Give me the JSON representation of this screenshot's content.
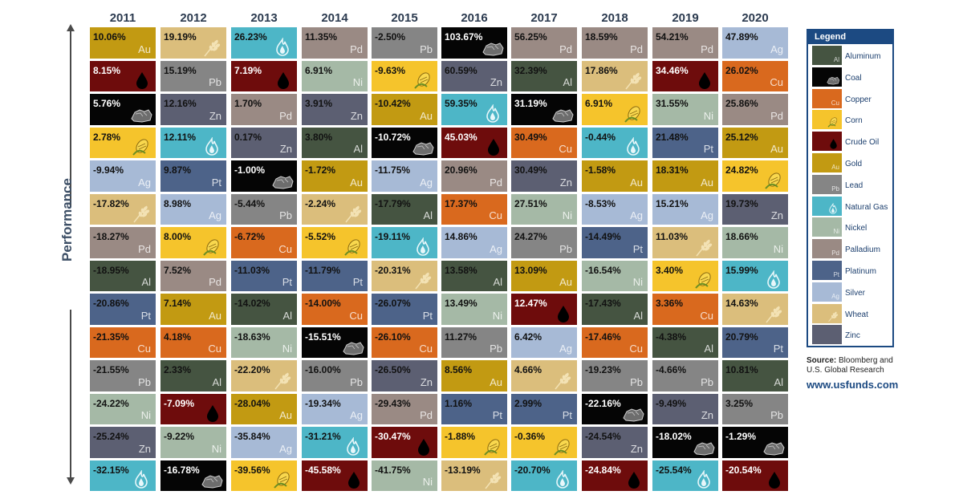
{
  "axis_label": "Performance",
  "legend": {
    "title": "Legend",
    "items": [
      {
        "symbol": "Al",
        "name": "Aluminum"
      },
      {
        "symbol": "",
        "name": "Coal"
      },
      {
        "symbol": "Cu",
        "name": "Copper"
      },
      {
        "symbol": "",
        "name": "Corn"
      },
      {
        "symbol": "",
        "name": "Crude Oil"
      },
      {
        "symbol": "Au",
        "name": "Gold"
      },
      {
        "symbol": "Pb",
        "name": "Lead"
      },
      {
        "symbol": "",
        "name": "Natural Gas"
      },
      {
        "symbol": "Ni",
        "name": "Nickel"
      },
      {
        "symbol": "Pd",
        "name": "Palladium"
      },
      {
        "symbol": "Pt",
        "name": "Platinum"
      },
      {
        "symbol": "Ag",
        "name": "Silver"
      },
      {
        "symbol": "",
        "name": "Wheat"
      },
      {
        "symbol": "",
        "name": "Zinc"
      }
    ]
  },
  "source_label": "Source:",
  "source_text": "Bloomberg and U.S. Global Research",
  "website": "www.usfunds.com",
  "colors": {
    "Al": "#455441",
    "Coal": "#050505",
    "Cu": "#d9691e",
    "Corn": "#f5c42c",
    "Oil": "#6e0c0c",
    "Au": "#c29a12",
    "Pb": "#858585",
    "Gas": "#4db6c7",
    "Ni": "#a5b9a6",
    "Pd": "#9a8a84",
    "Pt": "#4d6389",
    "Ag": "#a7bad6",
    "Wheat": "#dbbe7c",
    "Zn": "#5c5f72"
  },
  "chart_data": {
    "type": "table",
    "axis_label": "Performance",
    "years": [
      {
        "year": "2011",
        "cells": [
          {
            "c": "Au",
            "value": "10.06%",
            "symbol": "Au"
          },
          {
            "c": "Oil",
            "value": "8.15%",
            "symbol": ""
          },
          {
            "c": "Coal",
            "value": "5.76%",
            "symbol": ""
          },
          {
            "c": "Corn",
            "value": "2.78%",
            "symbol": ""
          },
          {
            "c": "Ag",
            "value": "-9.94%",
            "symbol": "Ag"
          },
          {
            "c": "Wheat",
            "value": "-17.82%",
            "symbol": ""
          },
          {
            "c": "Pd",
            "value": "-18.27%",
            "symbol": "Pd"
          },
          {
            "c": "Al",
            "value": "-18.95%",
            "symbol": "Al"
          },
          {
            "c": "Pt",
            "value": "-20.86%",
            "symbol": "Pt"
          },
          {
            "c": "Cu",
            "value": "-21.35%",
            "symbol": "Cu"
          },
          {
            "c": "Pb",
            "value": "-21.55%",
            "symbol": "Pb"
          },
          {
            "c": "Ni",
            "value": "-24.22%",
            "symbol": "Ni"
          },
          {
            "c": "Zn",
            "value": "-25.24%",
            "symbol": "Zn"
          },
          {
            "c": "Gas",
            "value": "-32.15%",
            "symbol": ""
          }
        ]
      },
      {
        "year": "2012",
        "cells": [
          {
            "c": "Wheat",
            "value": "19.19%",
            "symbol": ""
          },
          {
            "c": "Pb",
            "value": "15.19%",
            "symbol": "Pb"
          },
          {
            "c": "Zn",
            "value": "12.16%",
            "symbol": "Zn"
          },
          {
            "c": "Gas",
            "value": "12.11%",
            "symbol": ""
          },
          {
            "c": "Pt",
            "value": "9.87%",
            "symbol": "Pt"
          },
          {
            "c": "Ag",
            "value": "8.98%",
            "symbol": "Ag"
          },
          {
            "c": "Corn",
            "value": "8.00%",
            "symbol": ""
          },
          {
            "c": "Pd",
            "value": "7.52%",
            "symbol": "Pd"
          },
          {
            "c": "Au",
            "value": "7.14%",
            "symbol": "Au"
          },
          {
            "c": "Cu",
            "value": "4.18%",
            "symbol": "Cu"
          },
          {
            "c": "Al",
            "value": "2.33%",
            "symbol": "Al"
          },
          {
            "c": "Oil",
            "value": "-7.09%",
            "symbol": ""
          },
          {
            "c": "Ni",
            "value": "-9.22%",
            "symbol": "Ni"
          },
          {
            "c": "Coal",
            "value": "-16.78%",
            "symbol": ""
          }
        ]
      },
      {
        "year": "2013",
        "cells": [
          {
            "c": "Gas",
            "value": "26.23%",
            "symbol": ""
          },
          {
            "c": "Oil",
            "value": "7.19%",
            "symbol": ""
          },
          {
            "c": "Pd",
            "value": "1.70%",
            "symbol": "Pd"
          },
          {
            "c": "Zn",
            "value": "0.17%",
            "symbol": "Zn"
          },
          {
            "c": "Coal",
            "value": "-1.00%",
            "symbol": ""
          },
          {
            "c": "Pb",
            "value": "-5.44%",
            "symbol": "Pb"
          },
          {
            "c": "Cu",
            "value": "-6.72%",
            "symbol": "Cu"
          },
          {
            "c": "Pt",
            "value": "-11.03%",
            "symbol": "Pt"
          },
          {
            "c": "Al",
            "value": "-14.02%",
            "symbol": "Al"
          },
          {
            "c": "Ni",
            "value": "-18.63%",
            "symbol": "Ni"
          },
          {
            "c": "Wheat",
            "value": "-22.20%",
            "symbol": ""
          },
          {
            "c": "Au",
            "value": "-28.04%",
            "symbol": "Au"
          },
          {
            "c": "Ag",
            "value": "-35.84%",
            "symbol": "Ag"
          },
          {
            "c": "Corn",
            "value": "-39.56%",
            "symbol": ""
          }
        ]
      },
      {
        "year": "2014",
        "cells": [
          {
            "c": "Pd",
            "value": "11.35%",
            "symbol": "Pd"
          },
          {
            "c": "Ni",
            "value": "6.91%",
            "symbol": "Ni"
          },
          {
            "c": "Zn",
            "value": "3.91%",
            "symbol": "Zn"
          },
          {
            "c": "Al",
            "value": "3.80%",
            "symbol": "Al"
          },
          {
            "c": "Au",
            "value": "-1.72%",
            "symbol": "Au"
          },
          {
            "c": "Wheat",
            "value": "-2.24%",
            "symbol": ""
          },
          {
            "c": "Corn",
            "value": "-5.52%",
            "symbol": ""
          },
          {
            "c": "Pt",
            "value": "-11.79%",
            "symbol": "Pt"
          },
          {
            "c": "Cu",
            "value": "-14.00%",
            "symbol": "Cu"
          },
          {
            "c": "Coal",
            "value": "-15.51%",
            "symbol": ""
          },
          {
            "c": "Pb",
            "value": "-16.00%",
            "symbol": "Pb"
          },
          {
            "c": "Ag",
            "value": "-19.34%",
            "symbol": "Ag"
          },
          {
            "c": "Gas",
            "value": "-31.21%",
            "symbol": ""
          },
          {
            "c": "Oil",
            "value": "-45.58%",
            "symbol": ""
          }
        ]
      },
      {
        "year": "2015",
        "cells": [
          {
            "c": "Pb",
            "value": "-2.50%",
            "symbol": "Pb"
          },
          {
            "c": "Corn",
            "value": "-9.63%",
            "symbol": ""
          },
          {
            "c": "Au",
            "value": "-10.42%",
            "symbol": "Au"
          },
          {
            "c": "Coal",
            "value": "-10.72%",
            "symbol": ""
          },
          {
            "c": "Ag",
            "value": "-11.75%",
            "symbol": "Ag"
          },
          {
            "c": "Al",
            "value": "-17.79%",
            "symbol": "Al"
          },
          {
            "c": "Gas",
            "value": "-19.11%",
            "symbol": ""
          },
          {
            "c": "Wheat",
            "value": "-20.31%",
            "symbol": ""
          },
          {
            "c": "Pt",
            "value": "-26.07%",
            "symbol": "Pt"
          },
          {
            "c": "Cu",
            "value": "-26.10%",
            "symbol": "Cu"
          },
          {
            "c": "Zn",
            "value": "-26.50%",
            "symbol": "Zn"
          },
          {
            "c": "Pd",
            "value": "-29.43%",
            "symbol": "Pd"
          },
          {
            "c": "Oil",
            "value": "-30.47%",
            "symbol": ""
          },
          {
            "c": "Ni",
            "value": "-41.75%",
            "symbol": "Ni"
          }
        ]
      },
      {
        "year": "2016",
        "cells": [
          {
            "c": "Coal",
            "value": "103.67%",
            "symbol": ""
          },
          {
            "c": "Zn",
            "value": "60.59%",
            "symbol": "Zn"
          },
          {
            "c": "Gas",
            "value": "59.35%",
            "symbol": ""
          },
          {
            "c": "Oil",
            "value": "45.03%",
            "symbol": ""
          },
          {
            "c": "Pd",
            "value": "20.96%",
            "symbol": "Pd"
          },
          {
            "c": "Cu",
            "value": "17.37%",
            "symbol": "Cu"
          },
          {
            "c": "Ag",
            "value": "14.86%",
            "symbol": "Ag"
          },
          {
            "c": "Al",
            "value": "13.58%",
            "symbol": "Al"
          },
          {
            "c": "Ni",
            "value": "13.49%",
            "symbol": "Ni"
          },
          {
            "c": "Pb",
            "value": "11.27%",
            "symbol": "Pb"
          },
          {
            "c": "Au",
            "value": "8.56%",
            "symbol": "Au"
          },
          {
            "c": "Pt",
            "value": "1.16%",
            "symbol": "Pt"
          },
          {
            "c": "Corn",
            "value": "-1.88%",
            "symbol": ""
          },
          {
            "c": "Wheat",
            "value": "-13.19%",
            "symbol": ""
          }
        ]
      },
      {
        "year": "2017",
        "cells": [
          {
            "c": "Pd",
            "value": "56.25%",
            "symbol": "Pd"
          },
          {
            "c": "Al",
            "value": "32.39%",
            "symbol": "Al"
          },
          {
            "c": "Coal",
            "value": "31.19%",
            "symbol": ""
          },
          {
            "c": "Cu",
            "value": "30.49%",
            "symbol": "Cu"
          },
          {
            "c": "Zn",
            "value": "30.49%",
            "symbol": "Zn"
          },
          {
            "c": "Ni",
            "value": "27.51%",
            "symbol": "Ni"
          },
          {
            "c": "Pb",
            "value": "24.27%",
            "symbol": "Pb"
          },
          {
            "c": "Au",
            "value": "13.09%",
            "symbol": "Au"
          },
          {
            "c": "Oil",
            "value": "12.47%",
            "symbol": ""
          },
          {
            "c": "Ag",
            "value": "6.42%",
            "symbol": "Ag"
          },
          {
            "c": "Wheat",
            "value": "4.66%",
            "symbol": ""
          },
          {
            "c": "Pt",
            "value": "2.99%",
            "symbol": "Pt"
          },
          {
            "c": "Corn",
            "value": "-0.36%",
            "symbol": ""
          },
          {
            "c": "Gas",
            "value": "-20.70%",
            "symbol": ""
          }
        ]
      },
      {
        "year": "2018",
        "cells": [
          {
            "c": "Pd",
            "value": "18.59%",
            "symbol": "Pd"
          },
          {
            "c": "Wheat",
            "value": "17.86%",
            "symbol": ""
          },
          {
            "c": "Corn",
            "value": "6.91%",
            "symbol": ""
          },
          {
            "c": "Gas",
            "value": "-0.44%",
            "symbol": ""
          },
          {
            "c": "Au",
            "value": "-1.58%",
            "symbol": "Au"
          },
          {
            "c": "Ag",
            "value": "-8.53%",
            "symbol": "Ag"
          },
          {
            "c": "Pt",
            "value": "-14.49%",
            "symbol": "Pt"
          },
          {
            "c": "Ni",
            "value": "-16.54%",
            "symbol": "Ni"
          },
          {
            "c": "Al",
            "value": "-17.43%",
            "symbol": "Al"
          },
          {
            "c": "Cu",
            "value": "-17.46%",
            "symbol": "Cu"
          },
          {
            "c": "Pb",
            "value": "-19.23%",
            "symbol": "Pb"
          },
          {
            "c": "Coal",
            "value": "-22.16%",
            "symbol": ""
          },
          {
            "c": "Zn",
            "value": "-24.54%",
            "symbol": "Zn"
          },
          {
            "c": "Oil",
            "value": "-24.84%",
            "symbol": ""
          }
        ]
      },
      {
        "year": "2019",
        "cells": [
          {
            "c": "Pd",
            "value": "54.21%",
            "symbol": "Pd"
          },
          {
            "c": "Oil",
            "value": "34.46%",
            "symbol": ""
          },
          {
            "c": "Ni",
            "value": "31.55%",
            "symbol": "Ni"
          },
          {
            "c": "Pt",
            "value": "21.48%",
            "symbol": "Pt"
          },
          {
            "c": "Au",
            "value": "18.31%",
            "symbol": "Au"
          },
          {
            "c": "Ag",
            "value": "15.21%",
            "symbol": "Ag"
          },
          {
            "c": "Wheat",
            "value": "11.03%",
            "symbol": ""
          },
          {
            "c": "Corn",
            "value": "3.40%",
            "symbol": ""
          },
          {
            "c": "Cu",
            "value": "3.36%",
            "symbol": "Cu"
          },
          {
            "c": "Al",
            "value": "-4.38%",
            "symbol": "Al"
          },
          {
            "c": "Pb",
            "value": "-4.66%",
            "symbol": "Pb"
          },
          {
            "c": "Zn",
            "value": "-9.49%",
            "symbol": "Zn"
          },
          {
            "c": "Coal",
            "value": "-18.02%",
            "symbol": ""
          },
          {
            "c": "Gas",
            "value": "-25.54%",
            "symbol": ""
          }
        ]
      },
      {
        "year": "2020",
        "cells": [
          {
            "c": "Ag",
            "value": "47.89%",
            "symbol": "Ag"
          },
          {
            "c": "Cu",
            "value": "26.02%",
            "symbol": "Cu"
          },
          {
            "c": "Pd",
            "value": "25.86%",
            "symbol": "Pd"
          },
          {
            "c": "Au",
            "value": "25.12%",
            "symbol": "Au"
          },
          {
            "c": "Corn",
            "value": "24.82%",
            "symbol": ""
          },
          {
            "c": "Zn",
            "value": "19.73%",
            "symbol": "Zn"
          },
          {
            "c": "Ni",
            "value": "18.66%",
            "symbol": "Ni"
          },
          {
            "c": "Gas",
            "value": "15.99%",
            "symbol": ""
          },
          {
            "c": "Wheat",
            "value": "14.63%",
            "symbol": ""
          },
          {
            "c": "Pt",
            "value": "20.79%",
            "symbol": "Pt"
          },
          {
            "c": "Al",
            "value": "10.81%",
            "symbol": "Al"
          },
          {
            "c": "Pb",
            "value": "3.25%",
            "symbol": "Pb"
          },
          {
            "c": "Coal",
            "value": "-1.29%",
            "symbol": ""
          },
          {
            "c": "Oil",
            "value": "-20.54%",
            "symbol": ""
          }
        ]
      }
    ]
  }
}
